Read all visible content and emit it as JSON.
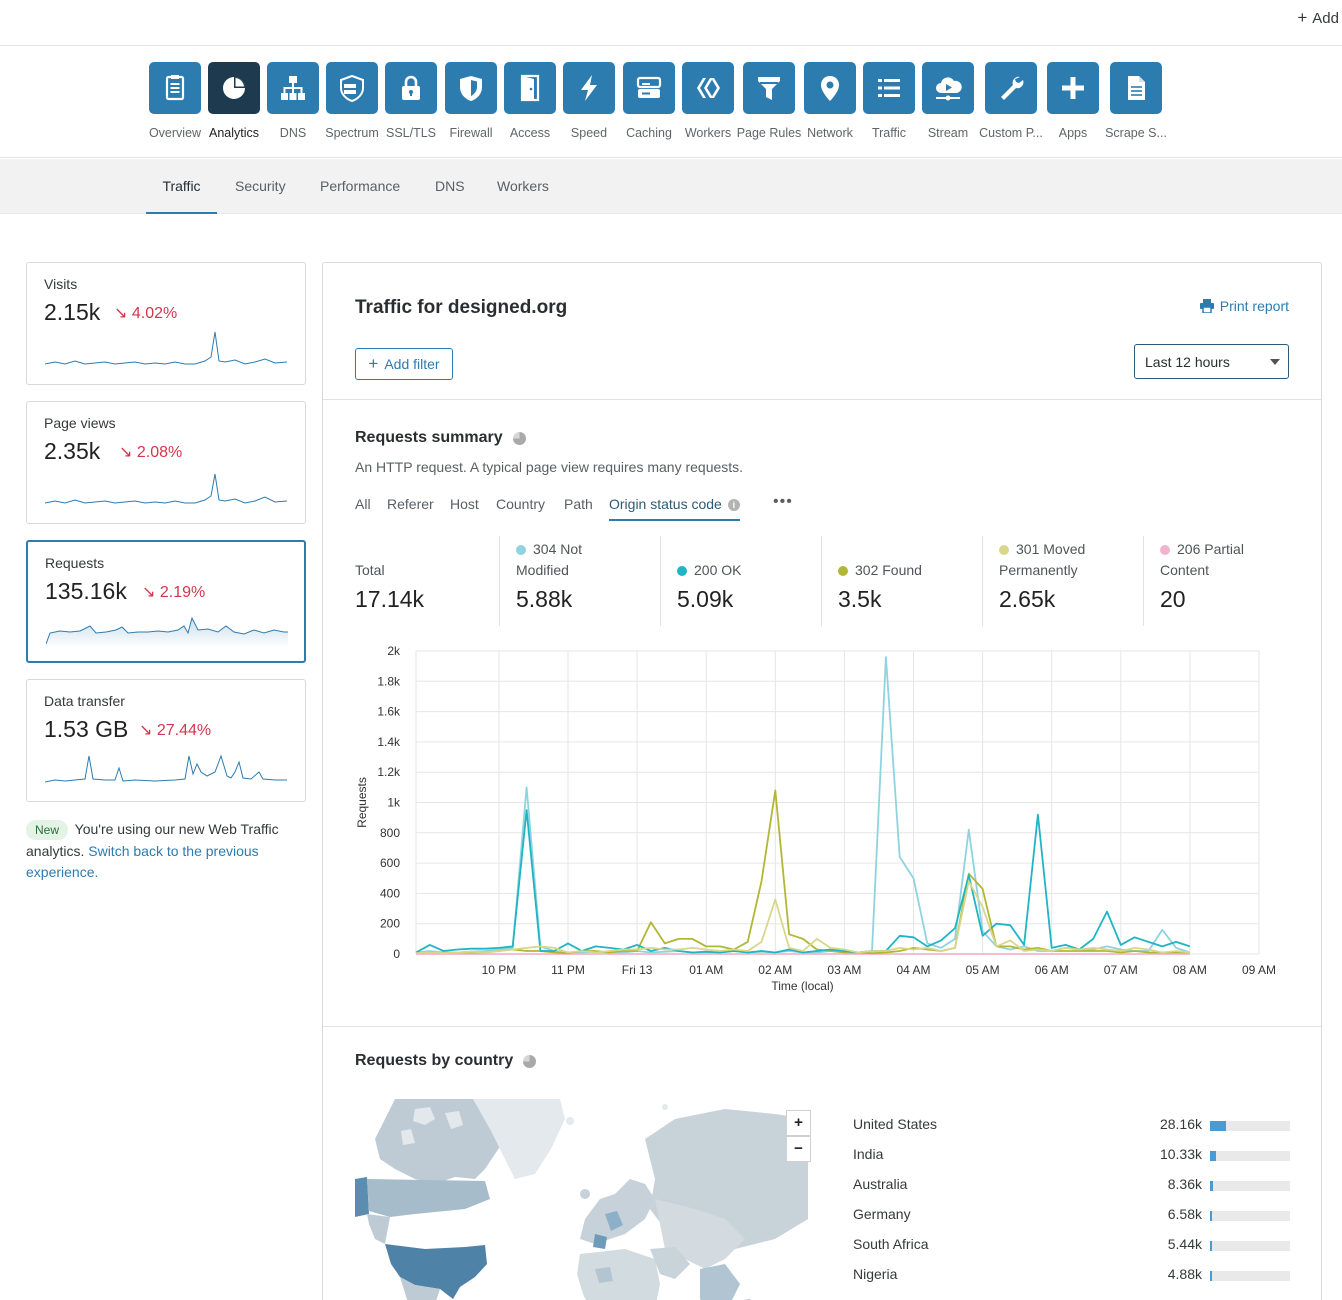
{
  "topbar": {
    "add_label": "Add"
  },
  "apps": [
    {
      "label": "Overview",
      "icon": "clipboard-icon",
      "active": false
    },
    {
      "label": "Analytics",
      "icon": "pie-chart-icon",
      "active": true
    },
    {
      "label": "DNS",
      "icon": "sitemap-icon",
      "active": false
    },
    {
      "label": "Spectrum",
      "icon": "spectrum-shield-icon",
      "active": false
    },
    {
      "label": "SSL/TLS",
      "icon": "lock-icon",
      "active": false
    },
    {
      "label": "Firewall",
      "icon": "shield-icon",
      "active": false
    },
    {
      "label": "Access",
      "icon": "door-icon",
      "active": false
    },
    {
      "label": "Speed",
      "icon": "lightning-icon",
      "active": false
    },
    {
      "label": "Caching",
      "icon": "server-icon",
      "active": false
    },
    {
      "label": "Workers",
      "icon": "workers-icon",
      "active": false
    },
    {
      "label": "Page Rules",
      "icon": "funnel-icon",
      "active": false
    },
    {
      "label": "Network",
      "icon": "location-pin-icon",
      "active": false
    },
    {
      "label": "Traffic",
      "icon": "list-icon",
      "active": false
    },
    {
      "label": "Stream",
      "icon": "cloud-play-icon",
      "active": false
    },
    {
      "label": "Custom P...",
      "icon": "wrench-icon",
      "active": false
    },
    {
      "label": "Apps",
      "icon": "plus-icon",
      "active": false
    },
    {
      "label": "Scrape S...",
      "icon": "document-icon",
      "active": false
    }
  ],
  "subnav": [
    "Traffic",
    "Security",
    "Performance",
    "DNS",
    "Workers"
  ],
  "cards": [
    {
      "title": "Visits",
      "value": "2.15k",
      "delta": "↘ 4.02%"
    },
    {
      "title": "Page views",
      "value": "2.35k",
      "delta": "↘ 2.08%"
    },
    {
      "title": "Requests",
      "value": "135.16k",
      "delta": "↘ 2.19%"
    },
    {
      "title": "Data transfer",
      "value": "1.53 GB",
      "delta": "↘ 27.44%"
    }
  ],
  "note": {
    "badge": "New",
    "text": "You're using our new Web Traffic analytics.",
    "link": "Switch back to the previous experience."
  },
  "panel": {
    "title": "Traffic for designed.org",
    "print_label": "Print report",
    "add_filter_label": "Add filter",
    "time_range": "Last 12 hours"
  },
  "requests_summary": {
    "title": "Requests summary",
    "description": "An HTTP request. A typical page view requires many requests.",
    "tabs": [
      "All",
      "Referer",
      "Host",
      "Country",
      "Path",
      "Origin status code"
    ],
    "more_label": "•••",
    "stats": [
      {
        "label1": "Total",
        "label2": "",
        "value": "17.14k",
        "color": ""
      },
      {
        "label1": "304 Not",
        "label2": "Modified",
        "value": "5.88k",
        "color": "#8fd3e0"
      },
      {
        "label1": "200 OK",
        "label2": "",
        "value": "5.09k",
        "color": "#1fb5c4"
      },
      {
        "label1": "302 Found",
        "label2": "",
        "value": "3.5k",
        "color": "#b2b733"
      },
      {
        "label1": "301 Moved",
        "label2": "Permanently",
        "value": "2.65k",
        "color": "#d7d789"
      },
      {
        "label1": "206 Partial",
        "label2": "Content",
        "value": "20",
        "color": "#f4b3cc"
      }
    ]
  },
  "chart_data": {
    "type": "line",
    "ylabel": "Requests",
    "xlabel": "Time (local)",
    "ylim": [
      0,
      2000
    ],
    "y_ticks": [
      "0",
      "200",
      "400",
      "600",
      "800",
      "1k",
      "1.2k",
      "1.4k",
      "1.6k",
      "1.8k",
      "2k"
    ],
    "x_ticks": [
      "10 PM",
      "11 PM",
      "Fri 13",
      "01 AM",
      "02 AM",
      "03 AM",
      "04 AM",
      "05 AM",
      "06 AM",
      "07 AM",
      "08 AM",
      "09 AM"
    ],
    "x_start": 20.8,
    "x_end": 33.0,
    "x_step": 0.2,
    "series": [
      {
        "name": "304 Not Modified",
        "color": "#8fd3e0",
        "values": [
          10,
          20,
          10,
          10,
          15,
          20,
          30,
          40,
          1100,
          50,
          20,
          10,
          10,
          15,
          10,
          10,
          20,
          10,
          15,
          20,
          10,
          10,
          10,
          20,
          10,
          15,
          10,
          20,
          10,
          10,
          20,
          10,
          10,
          20,
          1960,
          640,
          500,
          70,
          40,
          100,
          820,
          150,
          50,
          30,
          50,
          20,
          20,
          40,
          30,
          30,
          50,
          30,
          20,
          20,
          160,
          40,
          10
        ]
      },
      {
        "name": "200 OK",
        "color": "#1fb5c4",
        "values": [
          10,
          60,
          20,
          30,
          35,
          35,
          40,
          50,
          950,
          20,
          20,
          70,
          20,
          50,
          40,
          30,
          60,
          20,
          40,
          20,
          10,
          15,
          10,
          20,
          10,
          20,
          10,
          30,
          10,
          20,
          30,
          20,
          10,
          20,
          20,
          120,
          110,
          50,
          90,
          170,
          520,
          120,
          200,
          190,
          60,
          920,
          40,
          60,
          30,
          100,
          280,
          60,
          110,
          80,
          50,
          80,
          50
        ]
      },
      {
        "name": "302 Found",
        "color": "#b2b733",
        "values": [
          5,
          10,
          5,
          10,
          10,
          10,
          20,
          30,
          20,
          20,
          10,
          5,
          20,
          20,
          10,
          20,
          20,
          210,
          70,
          100,
          100,
          50,
          50,
          30,
          80,
          480,
          1080,
          130,
          100,
          30,
          20,
          10,
          10,
          5,
          10,
          20,
          40,
          30,
          20,
          40,
          530,
          430,
          50,
          50,
          30,
          40,
          20,
          20,
          20,
          20,
          20,
          10,
          20,
          10,
          10,
          10,
          10
        ]
      },
      {
        "name": "301 Moved Permanently",
        "color": "#d7d789",
        "values": [
          5,
          10,
          5,
          10,
          15,
          10,
          20,
          30,
          40,
          50,
          40,
          10,
          20,
          10,
          20,
          30,
          30,
          40,
          30,
          30,
          40,
          30,
          20,
          30,
          20,
          80,
          360,
          40,
          20,
          100,
          40,
          30,
          10,
          20,
          20,
          40,
          30,
          40,
          20,
          40,
          480,
          310,
          50,
          90,
          20,
          30,
          20,
          40,
          30,
          40,
          30,
          20,
          40,
          30,
          10,
          20,
          10
        ]
      },
      {
        "name": "206 Partial Content",
        "color": "#f4b3cc",
        "values": [
          0,
          0,
          0,
          0,
          0,
          0,
          0,
          0,
          0,
          0,
          0,
          0,
          0,
          0,
          0,
          0,
          0,
          0,
          0,
          0,
          0,
          0,
          0,
          0,
          0,
          0,
          0,
          0,
          0,
          0,
          0,
          0,
          0,
          0,
          0,
          0,
          0,
          0,
          0,
          0,
          0,
          0,
          0,
          0,
          0,
          0,
          0,
          0,
          0,
          0,
          0,
          0,
          0,
          0,
          0,
          0,
          0
        ]
      }
    ]
  },
  "requests_by_country": {
    "title": "Requests by country",
    "zoom_in": "+",
    "zoom_out": "−",
    "countries": [
      {
        "name": "United States",
        "value": "28.16k",
        "share": 0.2
      },
      {
        "name": "India",
        "value": "10.33k",
        "share": 0.07
      },
      {
        "name": "Australia",
        "value": "8.36k",
        "share": 0.04
      },
      {
        "name": "Germany",
        "value": "6.58k",
        "share": 0.03
      },
      {
        "name": "South Africa",
        "value": "5.44k",
        "share": 0.03
      },
      {
        "name": "Nigeria",
        "value": "4.88k",
        "share": 0.025
      }
    ]
  }
}
